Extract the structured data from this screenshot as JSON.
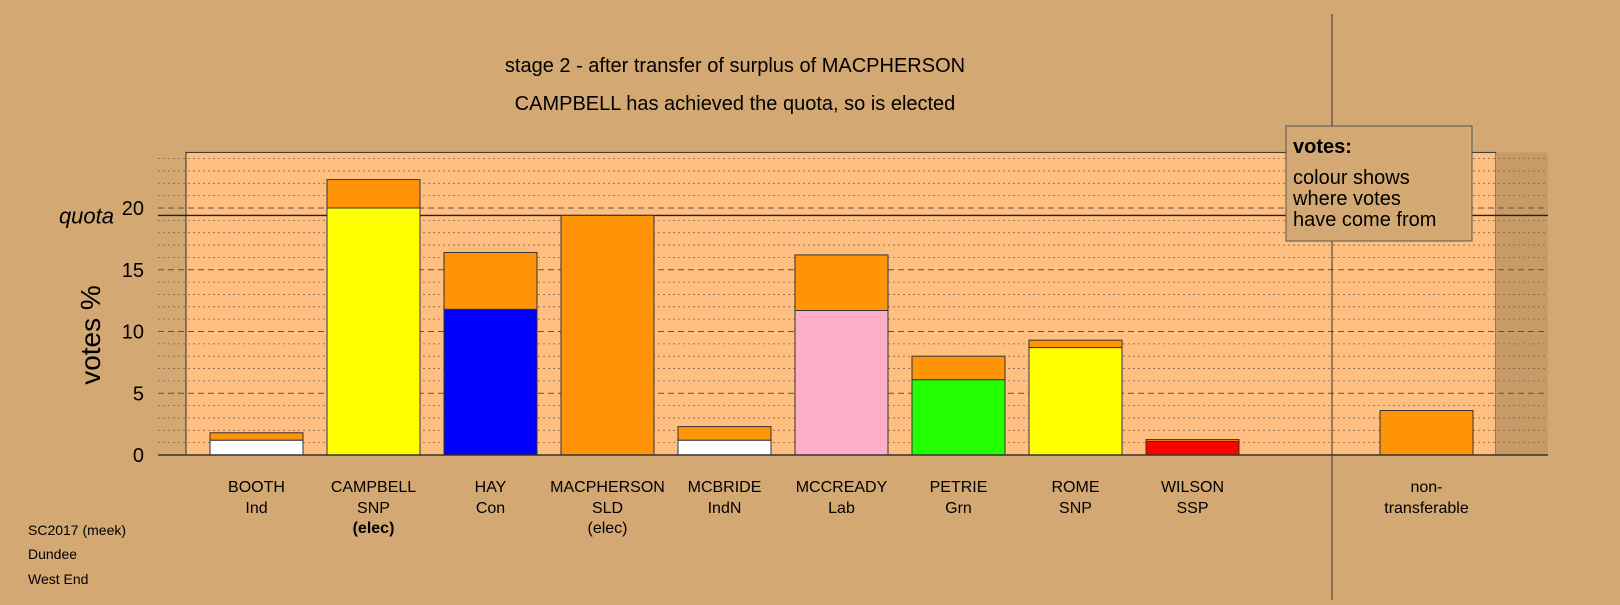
{
  "chart_data": {
    "type": "bar",
    "title": "stage 2 - after transfer of surplus of MACPHERSON",
    "subtitle": "CAMPBELL has achieved the quota, so is elected",
    "ylabel": "votes %",
    "ylim": [
      0,
      24.5
    ],
    "yticks": [
      0,
      5,
      10,
      15,
      20
    ],
    "quota": 19.4,
    "quota_label": "quota",
    "grid": true,
    "categories": [
      {
        "name": "BOOTH",
        "party": "Ind",
        "status": ""
      },
      {
        "name": "CAMPBELL",
        "party": "SNP",
        "status": "(elec)"
      },
      {
        "name": "HAY",
        "party": "Con",
        "status": ""
      },
      {
        "name": "MACPHERSON",
        "party": "SLD",
        "status": "(elec)"
      },
      {
        "name": "MCBRIDE",
        "party": "IndN",
        "status": ""
      },
      {
        "name": "MCCREADY",
        "party": "Lab",
        "status": ""
      },
      {
        "name": "PETRIE",
        "party": "Grn",
        "status": ""
      },
      {
        "name": "ROME",
        "party": "SNP",
        "status": ""
      },
      {
        "name": "WILSON",
        "party": "SSP",
        "status": ""
      }
    ],
    "segments": [
      [
        {
          "value": 1.2,
          "color": "#ffffff"
        },
        {
          "value": 0.6,
          "color": "#ff9408"
        }
      ],
      [
        {
          "value": 20.0,
          "color": "#ffff00"
        },
        {
          "value": 2.3,
          "color": "#ff9408"
        }
      ],
      [
        {
          "value": 11.8,
          "color": "#0000ff"
        },
        {
          "value": 4.6,
          "color": "#ff9408"
        }
      ],
      [
        {
          "value": 19.4,
          "color": "#ff9408"
        }
      ],
      [
        {
          "value": 1.2,
          "color": "#ffffff"
        },
        {
          "value": 1.1,
          "color": "#ff9408"
        }
      ],
      [
        {
          "value": 11.7,
          "color": "#ffaec9"
        },
        {
          "value": 4.5,
          "color": "#ff9408"
        }
      ],
      [
        {
          "value": 6.1,
          "color": "#22ff00"
        },
        {
          "value": 1.9,
          "color": "#ff9408"
        }
      ],
      [
        {
          "value": 8.7,
          "color": "#ffff00"
        },
        {
          "value": 0.6,
          "color": "#ff9408"
        }
      ],
      [
        {
          "value": 1.1,
          "color": "#ff0000"
        },
        {
          "value": 0.15,
          "color": "#ff9408"
        }
      ]
    ],
    "nontransferable": {
      "label_line1": "non-",
      "label_line2": "transferable",
      "value": 3.6,
      "color": "#ff9408"
    },
    "legend": {
      "title": "votes:",
      "lines": [
        "colour shows",
        "where votes",
        "have come from"
      ],
      "position": "top-right"
    }
  },
  "footer": {
    "line1": "SC2017 (meek)",
    "line2": "Dundee",
    "line3": "West End"
  },
  "colors": {
    "background": "#d4a873",
    "plot_bg": "#ffbf80",
    "transfer": "#ff9408"
  }
}
